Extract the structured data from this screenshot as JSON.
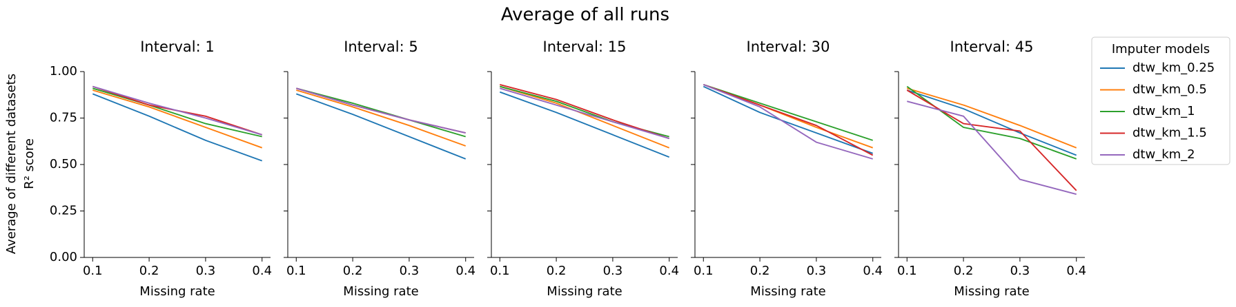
{
  "figure": {
    "title": "Average of all runs",
    "ylabel_line1": "Average of different datasets",
    "ylabel_line2": "R² score"
  },
  "legend": {
    "title": "Imputer models",
    "placement": "right",
    "entries": [
      {
        "name": "dtw_km_0.25",
        "color": "#1f77b4"
      },
      {
        "name": "dtw_km_0.5",
        "color": "#ff7f0e"
      },
      {
        "name": "dtw_km_1",
        "color": "#2ca02c"
      },
      {
        "name": "dtw_km_1.5",
        "color": "#d62728"
      },
      {
        "name": "dtw_km_2",
        "color": "#9467bd"
      }
    ]
  },
  "chart_data": [
    {
      "type": "line",
      "title": "Interval: 1",
      "xlabel": "Missing rate",
      "x": [
        0.1,
        0.2,
        0.3,
        0.4
      ],
      "xticks": [
        "0.1",
        "0.2",
        "0.3",
        "0.4"
      ],
      "ylim": [
        0,
        1
      ],
      "yticks": [
        "0.00",
        "0.25",
        "0.50",
        "0.75",
        "1.00"
      ],
      "grid": false,
      "series": [
        {
          "name": "dtw_km_0.25",
          "values": [
            0.88,
            0.76,
            0.63,
            0.52
          ]
        },
        {
          "name": "dtw_km_0.5",
          "values": [
            0.9,
            0.81,
            0.7,
            0.59
          ]
        },
        {
          "name": "dtw_km_1",
          "values": [
            0.91,
            0.82,
            0.72,
            0.65
          ]
        },
        {
          "name": "dtw_km_1.5",
          "values": [
            0.92,
            0.82,
            0.76,
            0.66
          ]
        },
        {
          "name": "dtw_km_2",
          "values": [
            0.92,
            0.83,
            0.75,
            0.66
          ]
        }
      ]
    },
    {
      "type": "line",
      "title": "Interval: 5",
      "xlabel": "Missing rate",
      "x": [
        0.1,
        0.2,
        0.3,
        0.4
      ],
      "xticks": [
        "0.1",
        "0.2",
        "0.3",
        "0.4"
      ],
      "ylim": [
        0,
        1
      ],
      "yticks": [
        "0.00",
        "0.25",
        "0.50",
        "0.75",
        "1.00"
      ],
      "grid": false,
      "series": [
        {
          "name": "dtw_km_0.25",
          "values": [
            0.88,
            0.77,
            0.65,
            0.53
          ]
        },
        {
          "name": "dtw_km_0.5",
          "values": [
            0.9,
            0.81,
            0.71,
            0.6
          ]
        },
        {
          "name": "dtw_km_1",
          "values": [
            0.91,
            0.83,
            0.74,
            0.65
          ]
        },
        {
          "name": "dtw_km_1.5",
          "values": [
            0.91,
            0.82,
            0.74,
            0.67
          ]
        },
        {
          "name": "dtw_km_2",
          "values": [
            0.91,
            0.82,
            0.74,
            0.67
          ]
        }
      ]
    },
    {
      "type": "line",
      "title": "Interval: 15",
      "xlabel": "Missing rate",
      "x": [
        0.1,
        0.2,
        0.3,
        0.4
      ],
      "xticks": [
        "0.1",
        "0.2",
        "0.3",
        "0.4"
      ],
      "ylim": [
        0,
        1
      ],
      "yticks": [
        "0.00",
        "0.25",
        "0.50",
        "0.75",
        "1.00"
      ],
      "grid": false,
      "series": [
        {
          "name": "dtw_km_0.25",
          "values": [
            0.89,
            0.78,
            0.66,
            0.54
          ]
        },
        {
          "name": "dtw_km_0.5",
          "values": [
            0.92,
            0.83,
            0.71,
            0.59
          ]
        },
        {
          "name": "dtw_km_1",
          "values": [
            0.92,
            0.84,
            0.73,
            0.65
          ]
        },
        {
          "name": "dtw_km_1.5",
          "values": [
            0.93,
            0.85,
            0.74,
            0.64
          ]
        },
        {
          "name": "dtw_km_2",
          "values": [
            0.91,
            0.82,
            0.73,
            0.64
          ]
        }
      ]
    },
    {
      "type": "line",
      "title": "Interval: 30",
      "xlabel": "Missing rate",
      "x": [
        0.1,
        0.2,
        0.3,
        0.4
      ],
      "xticks": [
        "0.1",
        "0.2",
        "0.3",
        "0.4"
      ],
      "ylim": [
        0,
        1
      ],
      "yticks": [
        "0.00",
        "0.25",
        "0.50",
        "0.75",
        "1.00"
      ],
      "grid": false,
      "series": [
        {
          "name": "dtw_km_0.25",
          "values": [
            0.92,
            0.78,
            0.67,
            0.56
          ]
        },
        {
          "name": "dtw_km_0.5",
          "values": [
            0.93,
            0.82,
            0.7,
            0.59
          ]
        },
        {
          "name": "dtw_km_1",
          "values": [
            0.93,
            0.83,
            0.73,
            0.63
          ]
        },
        {
          "name": "dtw_km_1.5",
          "values": [
            0.93,
            0.82,
            0.71,
            0.55
          ]
        },
        {
          "name": "dtw_km_2",
          "values": [
            0.93,
            0.81,
            0.62,
            0.53
          ]
        }
      ]
    },
    {
      "type": "line",
      "title": "Interval: 45",
      "xlabel": "Missing rate",
      "x": [
        0.1,
        0.2,
        0.3,
        0.4
      ],
      "xticks": [
        "0.1",
        "0.2",
        "0.3",
        "0.4"
      ],
      "ylim": [
        0,
        1
      ],
      "yticks": [
        "0.00",
        "0.25",
        "0.50",
        "0.75",
        "1.00"
      ],
      "grid": false,
      "series": [
        {
          "name": "dtw_km_0.25",
          "values": [
            0.9,
            0.8,
            0.67,
            0.55
          ]
        },
        {
          "name": "dtw_km_0.5",
          "values": [
            0.91,
            0.82,
            0.71,
            0.59
          ]
        },
        {
          "name": "dtw_km_1",
          "values": [
            0.92,
            0.7,
            0.64,
            0.53
          ]
        },
        {
          "name": "dtw_km_1.5",
          "values": [
            0.9,
            0.72,
            0.68,
            0.36
          ]
        },
        {
          "name": "dtw_km_2",
          "values": [
            0.84,
            0.76,
            0.42,
            0.34
          ]
        }
      ]
    }
  ]
}
